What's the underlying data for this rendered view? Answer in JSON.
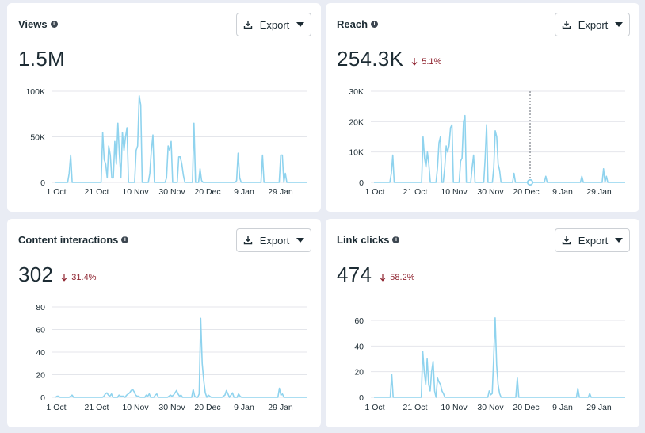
{
  "cards": [
    {
      "title": "Views",
      "value": "1.5M",
      "delta": "",
      "export_label": "Export",
      "chart_data": {
        "type": "line",
        "x_tick_labels": [
          "1 Oct",
          "21 Oct",
          "10 Nov",
          "30 Nov",
          "20 Dec",
          "9 Jan",
          "29 Jan"
        ],
        "y_ticks": [
          0,
          50000,
          100000
        ],
        "y_tick_labels": [
          "0",
          "50K",
          "100K"
        ],
        "ylim": [
          0,
          100000
        ],
        "series": [
          {
            "color": "#8fd3ee",
            "values": [
              0,
              0,
              0,
              0,
              0,
              0,
              0,
              0,
              0,
              10000,
              30000,
              0,
              0,
              0,
              0,
              0,
              0,
              0,
              0,
              0,
              0,
              0,
              0,
              0,
              0,
              0,
              0,
              0,
              0,
              0,
              0,
              55000,
              25000,
              20000,
              5000,
              40000,
              30000,
              5000,
              5000,
              45000,
              20000,
              65000,
              30000,
              5000,
              55000,
              35000,
              50000,
              60000,
              0,
              0,
              0,
              0,
              0,
              35000,
              40000,
              95000,
              85000,
              0,
              0,
              0,
              0,
              0,
              10000,
              35000,
              52000,
              0,
              0,
              0,
              0,
              0,
              0,
              0,
              0,
              5000,
              40000,
              35000,
              45000,
              0,
              0,
              0,
              0,
              28000,
              28000,
              20000,
              8000,
              0,
              0,
              0,
              0,
              0,
              0,
              65000,
              0,
              0,
              0,
              15000,
              2000,
              0,
              0,
              0,
              0,
              0,
              0,
              0,
              0,
              0,
              0,
              0,
              0,
              0,
              0,
              0,
              0,
              0,
              0,
              0,
              0,
              0,
              0,
              2000,
              32000,
              5000,
              0,
              0,
              0,
              0,
              0,
              0,
              0,
              0,
              0,
              0,
              0,
              0,
              0,
              0,
              30000,
              0,
              0,
              0,
              0,
              0,
              0,
              0,
              0,
              0,
              0,
              0,
              30000,
              30000,
              0,
              10000,
              0,
              0,
              0,
              0,
              0,
              0,
              0,
              0,
              0,
              0,
              0,
              0,
              0,
              0
            ]
          }
        ]
      }
    },
    {
      "title": "Reach",
      "value": "254.3K",
      "delta": "5.1%",
      "export_label": "Export",
      "chart_data": {
        "type": "line",
        "x_tick_labels": [
          "1 Oct",
          "21 Oct",
          "10 Nov",
          "30 Nov",
          "20 Dec",
          "9 Jan",
          "29 Jan"
        ],
        "y_ticks": [
          0,
          10000,
          20000,
          30000
        ],
        "y_tick_labels": [
          "0",
          "10K",
          "20K",
          "30K"
        ],
        "ylim": [
          0,
          30000
        ],
        "series": [
          {
            "color": "#8fd3ee",
            "values": [
              0,
              0,
              0,
              0,
              0,
              0,
              0,
              0,
              0,
              0,
              0,
              0,
              3000,
              9000,
              0,
              0,
              0,
              0,
              0,
              0,
              0,
              0,
              0,
              0,
              0,
              0,
              0,
              0,
              0,
              0,
              0,
              0,
              0,
              0,
              15000,
              8000,
              5000,
              10000,
              6000,
              0,
              0,
              0,
              0,
              0,
              5000,
              13000,
              15000,
              0,
              0,
              5000,
              12000,
              10000,
              12000,
              18000,
              19000,
              0,
              0,
              0,
              0,
              0,
              7000,
              8000,
              20000,
              22000,
              0,
              0,
              0,
              0,
              5000,
              9000,
              0,
              0,
              0,
              0,
              0,
              0,
              0,
              8000,
              19000,
              0,
              0,
              0,
              0,
              5000,
              17000,
              15000,
              6000,
              4000,
              0,
              0,
              0,
              0,
              0,
              0,
              0,
              0,
              0,
              3000,
              0,
              0,
              0,
              0,
              0,
              0,
              0,
              0,
              0,
              0,
              0,
              0,
              0,
              0,
              0,
              0,
              0,
              0,
              0,
              0,
              0,
              2000,
              0,
              0,
              0,
              0,
              0,
              0,
              0,
              0,
              0,
              0,
              0,
              0,
              0,
              0,
              0,
              0,
              0,
              0,
              0,
              0,
              0,
              0,
              0,
              0,
              2000,
              0,
              0,
              0,
              0,
              0,
              0,
              0,
              0,
              0,
              0,
              0,
              0,
              0,
              0,
              4500,
              0,
              2000,
              0,
              0,
              0,
              0,
              0,
              0,
              0,
              0,
              0,
              0,
              0,
              0,
              0
            ]
          }
        ],
        "hover_marker": {
          "date_label": "",
          "value": 0
        }
      }
    },
    {
      "title": "Content interactions",
      "value": "302",
      "delta": "31.4%",
      "export_label": "Export",
      "chart_data": {
        "type": "line",
        "x_tick_labels": [
          "1 Oct",
          "21 Oct",
          "10 Nov",
          "30 Nov",
          "20 Dec",
          "9 Jan",
          "29 Jan"
        ],
        "y_ticks": [
          0,
          20,
          40,
          60,
          80
        ],
        "y_tick_labels": [
          "0",
          "20",
          "40",
          "60",
          "80"
        ],
        "ylim": [
          0,
          80
        ],
        "series": [
          {
            "color": "#8fd3ee",
            "values": [
              0,
              1,
              1,
              0,
              0,
              0,
              0,
              0,
              0,
              0,
              1,
              2,
              0,
              0,
              0,
              0,
              0,
              0,
              0,
              0,
              0,
              0,
              0,
              0,
              0,
              0,
              0,
              0,
              0,
              0,
              0,
              0,
              1,
              3,
              4,
              2,
              1,
              3,
              0,
              0,
              0,
              0,
              2,
              1,
              1,
              1,
              0,
              2,
              3,
              4,
              6,
              7,
              5,
              2,
              1,
              1,
              0,
              0,
              0,
              0,
              2,
              1,
              3,
              0,
              0,
              0,
              2,
              3,
              0,
              0,
              0,
              0,
              0,
              0,
              0,
              1,
              2,
              1,
              2,
              4,
              6,
              3,
              1,
              2,
              0,
              0,
              0,
              0,
              0,
              0,
              0,
              7,
              1,
              0,
              0,
              3,
              70,
              30,
              15,
              4,
              0,
              2,
              1,
              0,
              0,
              0,
              0,
              0,
              0,
              0,
              0,
              1,
              2,
              6,
              3,
              0,
              2,
              4,
              0,
              0,
              0,
              3,
              1,
              0,
              0,
              0,
              0,
              0,
              0,
              0,
              0,
              0,
              0,
              0,
              0,
              0,
              0,
              0,
              0,
              0,
              0,
              0,
              0,
              0,
              0,
              0,
              0,
              0,
              8,
              2,
              3,
              0,
              0,
              0,
              0,
              0,
              0,
              0,
              0,
              0,
              0,
              0,
              0,
              0,
              0,
              0,
              0
            ]
          }
        ]
      }
    },
    {
      "title": "Link clicks",
      "value": "474",
      "delta": "58.2%",
      "export_label": "Export",
      "chart_data": {
        "type": "line",
        "x_tick_labels": [
          "1 Oct",
          "21 Oct",
          "10 Nov",
          "30 Nov",
          "20 Dec",
          "9 Jan",
          "29 Jan"
        ],
        "y_ticks": [
          0,
          20,
          40,
          60
        ],
        "y_tick_labels": [
          "0",
          "20",
          "40",
          "60"
        ],
        "ylim": [
          0,
          60
        ],
        "series": [
          {
            "color": "#8fd3ee",
            "values": [
              0,
              0,
              0,
              0,
              0,
              0,
              0,
              0,
              0,
              0,
              0,
              0,
              18,
              0,
              0,
              0,
              0,
              0,
              0,
              0,
              0,
              0,
              0,
              0,
              0,
              0,
              0,
              0,
              0,
              0,
              0,
              0,
              0,
              36,
              20,
              10,
              30,
              10,
              5,
              20,
              28,
              5,
              0,
              15,
              12,
              10,
              5,
              3,
              0,
              0,
              0,
              0,
              0,
              0,
              0,
              0,
              0,
              0,
              0,
              0,
              0,
              0,
              0,
              0,
              0,
              0,
              0,
              0,
              0,
              0,
              0,
              0,
              0,
              0,
              0,
              0,
              0,
              0,
              5,
              2,
              3,
              30,
              62,
              25,
              10,
              3,
              0,
              0,
              0,
              0,
              0,
              0,
              0,
              0,
              0,
              0,
              0,
              15,
              0,
              0,
              0,
              0,
              0,
              0,
              0,
              0,
              0,
              0,
              0,
              0,
              0,
              0,
              0,
              0,
              0,
              0,
              0,
              0,
              0,
              0,
              0,
              0,
              0,
              0,
              0,
              0,
              0,
              0,
              0,
              0,
              0,
              0,
              0,
              0,
              0,
              0,
              0,
              0,
              7,
              0,
              0,
              0,
              0,
              0,
              0,
              0,
              3,
              0,
              0,
              0,
              0,
              0,
              0,
              0,
              0,
              0,
              0,
              0,
              0,
              0,
              0,
              0,
              0,
              0,
              0,
              0,
              0,
              0,
              0,
              0,
              0
            ]
          }
        ]
      }
    }
  ]
}
